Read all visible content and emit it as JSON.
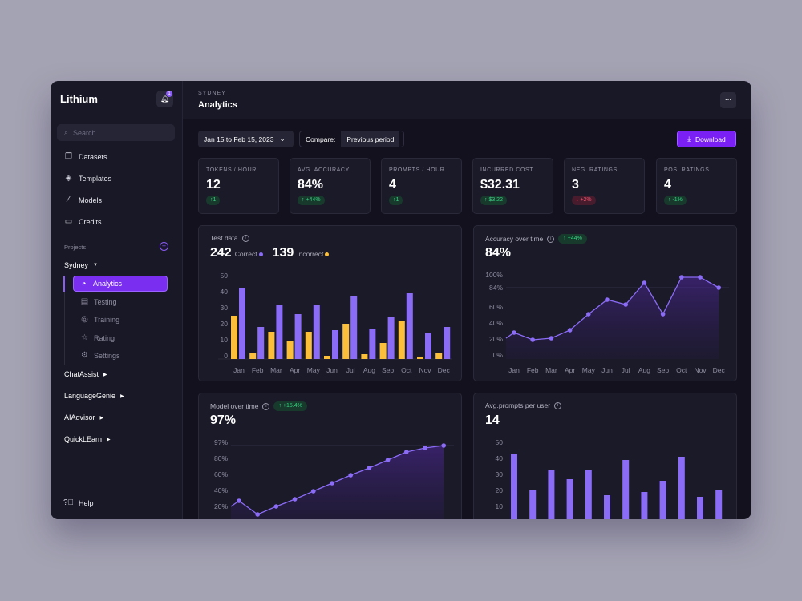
{
  "app": {
    "name": "Lithium",
    "notifications": "1"
  },
  "sidebar": {
    "search_placeholder": "Search",
    "items": [
      {
        "label": "Datasets",
        "icon": "copy-icon"
      },
      {
        "label": "Templates",
        "icon": "layers-icon"
      },
      {
        "label": "Models",
        "icon": "magic-wand-icon"
      },
      {
        "label": "Credits",
        "icon": "credit-card-icon"
      }
    ],
    "projects_label": "Projects",
    "active_project": "Sydney",
    "project_items": [
      {
        "label": "Analytics",
        "icon": "pie-chart-icon"
      },
      {
        "label": "Testing",
        "icon": "clipboard-icon"
      },
      {
        "label": "Training",
        "icon": "target-icon"
      },
      {
        "label": "Rating",
        "icon": "star-icon"
      },
      {
        "label": "Settings",
        "icon": "gear-icon"
      }
    ],
    "other_projects": [
      "ChatAssist",
      "LanguageGenie",
      "AIAdvisor",
      "QuickLEarn"
    ],
    "help": "Help"
  },
  "header": {
    "breadcrumb": "SYDNEY",
    "title": "Analytics",
    "more": "..."
  },
  "toolbar": {
    "date_range": "Jan 15 to Feb 15, 2023",
    "compare_label": "Compare:",
    "compare_value": "Previous period",
    "download": "Download"
  },
  "stats": [
    {
      "label": "TOKENS / HOUR",
      "value": "12",
      "delta": "↑1",
      "trend": "up"
    },
    {
      "label": "AVG. ACCURACY",
      "value": "84%",
      "delta": "↑ +44%",
      "trend": "up"
    },
    {
      "label": "PROMPTS / HOUR",
      "value": "4",
      "delta": "↑1",
      "trend": "up"
    },
    {
      "label": "INCURRED COST",
      "value": "$32.31",
      "delta": "↑ $3.22",
      "trend": "up"
    },
    {
      "label": "NEG. RATINGS",
      "value": "3",
      "delta": "↓ +2%",
      "trend": "down"
    },
    {
      "label": "POS. RATINGS",
      "value": "4",
      "delta": "↑ -1%",
      "trend": "up"
    }
  ],
  "colors": {
    "accent": "#7a2ff0",
    "correct": "#8b6cf6",
    "incorrect": "#fbbf3c",
    "positive": "#35d07f",
    "negative": "#f0506e"
  },
  "chart_data": [
    {
      "type": "bar",
      "title": "Test data",
      "summary": [
        {
          "value": "242",
          "label": "Correct"
        },
        {
          "value": "139",
          "label": "Incorrect"
        }
      ],
      "categories": [
        "Jan",
        "Feb",
        "Mar",
        "Apr",
        "May",
        "Jun",
        "Jul",
        "Aug",
        "Sep",
        "Oct",
        "Nov",
        "Dec"
      ],
      "series": [
        {
          "name": "Incorrect",
          "color": "#fbbf3c",
          "values": [
            27,
            4,
            17,
            11,
            17,
            2,
            22,
            3,
            10,
            24,
            1,
            4
          ]
        },
        {
          "name": "Correct",
          "color": "#8b6cf6",
          "values": [
            44,
            20,
            34,
            28,
            34,
            18,
            39,
            19,
            26,
            41,
            16,
            20
          ]
        }
      ],
      "yticks": [
        "50",
        "40",
        "30",
        "20",
        "10",
        "0"
      ],
      "ylim": [
        0,
        50
      ]
    },
    {
      "type": "area",
      "title": "Accuracy over time",
      "delta": "↑ +44%",
      "headline": "84%",
      "categories": [
        "Jan",
        "Feb",
        "Mar",
        "Apr",
        "May",
        "Jun",
        "Jul",
        "Aug",
        "Sep",
        "Oct",
        "Nov",
        "Dec"
      ],
      "values": [
        28,
        19,
        21,
        31,
        51,
        69,
        63,
        90,
        51,
        97,
        97,
        84
      ],
      "reference": 84,
      "yticks": [
        "100%",
        "84%",
        "60%",
        "40%",
        "20%",
        "0%"
      ],
      "ylim": [
        0,
        100
      ]
    },
    {
      "type": "area",
      "title": "Model over time",
      "delta": "↑ +15.4%",
      "headline": "97%",
      "values": [
        28,
        11,
        21,
        30,
        40,
        50,
        60,
        69,
        79,
        89,
        94,
        97
      ],
      "reference": 97,
      "yticks": [
        "97%",
        "80%",
        "60%",
        "40%",
        "20%"
      ]
    },
    {
      "type": "bar",
      "title": "Avg.prompts per user",
      "headline": "14",
      "values": [
        43,
        20,
        33,
        27,
        33,
        17,
        39,
        19,
        26,
        41,
        16,
        20
      ],
      "yticks": [
        "50",
        "40",
        "30",
        "20",
        "10"
      ]
    }
  ]
}
